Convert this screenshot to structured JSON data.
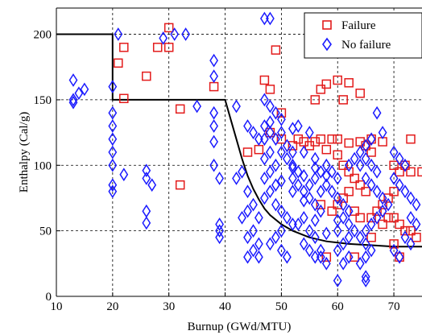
{
  "chart_data": {
    "type": "scatter",
    "title": "",
    "xlabel": "Burnup (GWd/MTU)",
    "ylabel": "Enthalpy (Cal/g)",
    "xlim": [
      10,
      75
    ],
    "ylim": [
      0,
      220
    ],
    "x_ticks": [
      10,
      20,
      30,
      40,
      50,
      60,
      70
    ],
    "y_ticks": [
      0,
      50,
      100,
      150,
      200
    ],
    "grid": true,
    "legend_position": "top-right",
    "colors": {
      "failure": "#e31b1b",
      "no_failure": "#1a1aff",
      "boundary": "#000000"
    },
    "boundary": {
      "x": [
        10,
        20,
        20,
        40,
        41,
        42,
        43,
        44,
        45,
        46,
        47,
        48,
        50,
        52,
        55,
        58,
        62,
        66,
        70,
        75
      ],
      "y": [
        200,
        200,
        150,
        150,
        135,
        120,
        105,
        92,
        82,
        74,
        67,
        62,
        55,
        50,
        45,
        42,
        40,
        39,
        38,
        38
      ]
    },
    "series": [
      {
        "name": "Failure",
        "marker": "square",
        "points": [
          [
            21,
            178
          ],
          [
            22,
            190
          ],
          [
            22,
            151
          ],
          [
            26,
            168
          ],
          [
            28,
            190
          ],
          [
            30,
            205
          ],
          [
            30,
            190
          ],
          [
            32,
            143
          ],
          [
            32,
            85
          ],
          [
            38,
            160
          ],
          [
            47,
            165
          ],
          [
            48,
            158
          ],
          [
            49,
            188
          ],
          [
            50,
            140
          ],
          [
            52,
            115
          ],
          [
            54,
            118
          ],
          [
            56,
            150
          ],
          [
            56,
            118
          ],
          [
            57,
            158
          ],
          [
            58,
            162
          ],
          [
            60,
            165
          ],
          [
            61,
            150
          ],
          [
            62,
            163
          ],
          [
            64,
            155
          ],
          [
            66,
            120
          ],
          [
            68,
            118
          ],
          [
            73,
            120
          ],
          [
            75,
            95
          ],
          [
            44,
            110
          ],
          [
            46,
            112
          ],
          [
            48,
            125
          ],
          [
            50,
            120
          ],
          [
            53,
            120
          ],
          [
            55,
            115
          ],
          [
            57,
            120
          ],
          [
            58,
            112
          ],
          [
            59,
            120
          ],
          [
            60,
            120
          ],
          [
            62,
            117
          ],
          [
            64,
            118
          ],
          [
            65,
            115
          ],
          [
            66,
            110
          ],
          [
            60,
            108
          ],
          [
            61,
            100
          ],
          [
            62,
            95
          ],
          [
            63,
            90
          ],
          [
            64,
            85
          ],
          [
            65,
            80
          ],
          [
            62,
            80
          ],
          [
            61,
            75
          ],
          [
            60,
            70
          ],
          [
            59,
            65
          ],
          [
            63,
            65
          ],
          [
            64,
            60
          ],
          [
            66,
            60
          ],
          [
            67,
            65
          ],
          [
            68,
            70
          ],
          [
            69,
            75
          ],
          [
            70,
            80
          ],
          [
            70,
            100
          ],
          [
            71,
            95
          ],
          [
            72,
            100
          ],
          [
            73,
            95
          ],
          [
            70,
            60
          ],
          [
            71,
            55
          ],
          [
            72,
            50
          ],
          [
            68,
            55
          ],
          [
            69,
            60
          ],
          [
            57,
            70
          ],
          [
            58,
            30
          ],
          [
            63,
            30
          ],
          [
            66,
            45
          ],
          [
            70,
            40
          ],
          [
            71,
            30
          ],
          [
            73,
            50
          ],
          [
            74,
            45
          ]
        ]
      },
      {
        "name": "No failure",
        "marker": "diamond",
        "points": [
          [
            13,
            165
          ],
          [
            13,
            150
          ],
          [
            14,
            155
          ],
          [
            15,
            158
          ],
          [
            13,
            148
          ],
          [
            20,
            160
          ],
          [
            21,
            200
          ],
          [
            20,
            140
          ],
          [
            20,
            130
          ],
          [
            20,
            120
          ],
          [
            20,
            110
          ],
          [
            20,
            100
          ],
          [
            20,
            85
          ],
          [
            20,
            80
          ],
          [
            22,
            93
          ],
          [
            26,
            96
          ],
          [
            26,
            90
          ],
          [
            27,
            85
          ],
          [
            26,
            65
          ],
          [
            26,
            56
          ],
          [
            29,
            197
          ],
          [
            31,
            200
          ],
          [
            33,
            200
          ],
          [
            35,
            145
          ],
          [
            38,
            180
          ],
          [
            38,
            168
          ],
          [
            38,
            140
          ],
          [
            38,
            130
          ],
          [
            38,
            118
          ],
          [
            38,
            100
          ],
          [
            39,
            90
          ],
          [
            39,
            55
          ],
          [
            39,
            50
          ],
          [
            39,
            45
          ],
          [
            42,
            145
          ],
          [
            47,
            212
          ],
          [
            48,
            212
          ],
          [
            44,
            130
          ],
          [
            45,
            125
          ],
          [
            46,
            120
          ],
          [
            47,
            120
          ],
          [
            43,
            95
          ],
          [
            42,
            90
          ],
          [
            44,
            80
          ],
          [
            45,
            70
          ],
          [
            44,
            65
          ],
          [
            43,
            60
          ],
          [
            46,
            60
          ],
          [
            45,
            50
          ],
          [
            44,
            45
          ],
          [
            46,
            40
          ],
          [
            45,
            35
          ],
          [
            44,
            30
          ],
          [
            46,
            30
          ],
          [
            47,
            150
          ],
          [
            48,
            145
          ],
          [
            49,
            140
          ],
          [
            50,
            135
          ],
          [
            47,
            130
          ],
          [
            48,
            125
          ],
          [
            49,
            120
          ],
          [
            51,
            115
          ],
          [
            50,
            110
          ],
          [
            51,
            105
          ],
          [
            52,
            100
          ],
          [
            53,
            95
          ],
          [
            52,
            90
          ],
          [
            53,
            85
          ],
          [
            54,
            80
          ],
          [
            55,
            75
          ],
          [
            56,
            70
          ],
          [
            57,
            65
          ],
          [
            54,
            60
          ],
          [
            53,
            55
          ],
          [
            55,
            50
          ],
          [
            56,
            45
          ],
          [
            54,
            40
          ],
          [
            55,
            35
          ],
          [
            57,
            30
          ],
          [
            58,
            25
          ],
          [
            48,
            110
          ],
          [
            47,
            105
          ],
          [
            49,
            100
          ],
          [
            48,
            95
          ],
          [
            47,
            90
          ],
          [
            49,
            85
          ],
          [
            48,
            80
          ],
          [
            47,
            75
          ],
          [
            49,
            70
          ],
          [
            50,
            65
          ],
          [
            51,
            60
          ],
          [
            52,
            55
          ],
          [
            50,
            50
          ],
          [
            49,
            45
          ],
          [
            48,
            40
          ],
          [
            50,
            35
          ],
          [
            51,
            30
          ],
          [
            52,
            110
          ],
          [
            54,
            110
          ],
          [
            56,
            105
          ],
          [
            58,
            100
          ],
          [
            59,
            95
          ],
          [
            60,
            90
          ],
          [
            57,
            95
          ],
          [
            56,
            90
          ],
          [
            55,
            85
          ],
          [
            58,
            85
          ],
          [
            57,
            80
          ],
          [
            59,
            80
          ],
          [
            60,
            75
          ],
          [
            61,
            70
          ],
          [
            62,
            65
          ],
          [
            61,
            60
          ],
          [
            62,
            55
          ],
          [
            60,
            50
          ],
          [
            63,
            50
          ],
          [
            62,
            45
          ],
          [
            61,
            40
          ],
          [
            60,
            35
          ],
          [
            62,
            30
          ],
          [
            61,
            25
          ],
          [
            64,
            110
          ],
          [
            65,
            105
          ],
          [
            66,
            100
          ],
          [
            67,
            95
          ],
          [
            65,
            90
          ],
          [
            66,
            85
          ],
          [
            67,
            80
          ],
          [
            68,
            75
          ],
          [
            69,
            70
          ],
          [
            68,
            65
          ],
          [
            67,
            60
          ],
          [
            66,
            55
          ],
          [
            65,
            50
          ],
          [
            64,
            45
          ],
          [
            65,
            40
          ],
          [
            66,
            35
          ],
          [
            65,
            30
          ],
          [
            64,
            25
          ],
          [
            65,
            15
          ],
          [
            65,
            12
          ],
          [
            60,
            12
          ],
          [
            67,
            140
          ],
          [
            68,
            125
          ],
          [
            70,
            110
          ],
          [
            71,
            105
          ],
          [
            72,
            100
          ],
          [
            70,
            90
          ],
          [
            71,
            85
          ],
          [
            72,
            80
          ],
          [
            73,
            75
          ],
          [
            74,
            70
          ],
          [
            73,
            60
          ],
          [
            74,
            55
          ],
          [
            72,
            45
          ],
          [
            73,
            40
          ],
          [
            70,
            35
          ],
          [
            71,
            30
          ],
          [
            66,
            120
          ],
          [
            65,
            115
          ],
          [
            64,
            100
          ],
          [
            63,
            105
          ],
          [
            62,
            100
          ],
          [
            55,
            125
          ],
          [
            53,
            130
          ],
          [
            52,
            128
          ],
          [
            50,
            125
          ],
          [
            48,
            133
          ],
          [
            52,
            98
          ],
          [
            54,
            92
          ],
          [
            56,
            98
          ],
          [
            58,
            92
          ],
          [
            50,
            88
          ],
          [
            52,
            80
          ],
          [
            54,
            73
          ],
          [
            56,
            58
          ],
          [
            58,
            48
          ],
          [
            60,
            58
          ],
          [
            56,
            30
          ],
          [
            57,
            35
          ]
        ]
      }
    ]
  }
}
